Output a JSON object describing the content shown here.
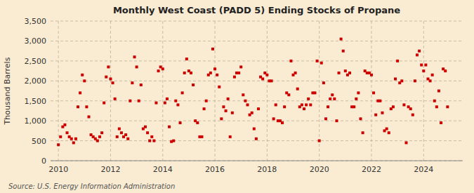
{
  "chart_data": {
    "type": "scatter",
    "title": "Monthly West Coast (PADD 5) Ending Stocks of Propane",
    "ylabel": "Thousand Barrels",
    "annotations": [
      "Source: U.S. Energy Information Administration"
    ],
    "color": "#cc0000",
    "marker": "square",
    "grid": true,
    "xlim": [
      2009.7,
      2025.5
    ],
    "xticks": [
      2010,
      2012,
      2014,
      2016,
      2018,
      2020,
      2022,
      2024
    ],
    "ylim": [
      0,
      3500
    ],
    "yticks": [
      0,
      500,
      {
        "value": 1000,
        "label": "1,000"
      },
      {
        "value": 1500,
        "label": "1,500"
      },
      {
        "value": 2000,
        "label": "2,000"
      },
      {
        "value": 2500,
        "label": "2,500"
      },
      {
        "value": 3000,
        "label": "3,000"
      },
      {
        "value": 3500,
        "label": "3,500"
      }
    ],
    "x": [
      2010.0,
      2010.083,
      2010.167,
      2010.25,
      2010.333,
      2010.417,
      2010.5,
      2010.583,
      2010.667,
      2010.75,
      2010.833,
      2010.917,
      2011.0,
      2011.083,
      2011.167,
      2011.25,
      2011.333,
      2011.417,
      2011.5,
      2011.583,
      2011.667,
      2011.75,
      2011.833,
      2011.917,
      2012.0,
      2012.083,
      2012.167,
      2012.25,
      2012.333,
      2012.417,
      2012.5,
      2012.583,
      2012.667,
      2012.75,
      2012.833,
      2012.917,
      2013.0,
      2013.083,
      2013.167,
      2013.25,
      2013.333,
      2013.417,
      2013.5,
      2013.583,
      2013.667,
      2013.75,
      2013.833,
      2013.917,
      2014.0,
      2014.083,
      2014.167,
      2014.25,
      2014.333,
      2014.417,
      2014.5,
      2014.583,
      2014.667,
      2014.75,
      2014.833,
      2014.917,
      2015.0,
      2015.083,
      2015.167,
      2015.25,
      2015.333,
      2015.417,
      2015.5,
      2015.583,
      2015.667,
      2015.75,
      2015.833,
      2015.917,
      2016.0,
      2016.083,
      2016.167,
      2016.25,
      2016.333,
      2016.417,
      2016.5,
      2016.583,
      2016.667,
      2016.75,
      2016.833,
      2016.917,
      2017.0,
      2017.083,
      2017.167,
      2017.25,
      2017.333,
      2017.417,
      2017.5,
      2017.583,
      2017.667,
      2017.75,
      2017.833,
      2017.917,
      2018.0,
      2018.083,
      2018.167,
      2018.25,
      2018.333,
      2018.417,
      2018.5,
      2018.583,
      2018.667,
      2018.75,
      2018.833,
      2018.917,
      2019.0,
      2019.083,
      2019.167,
      2019.25,
      2019.333,
      2019.417,
      2019.5,
      2019.583,
      2019.667,
      2019.75,
      2019.833,
      2019.917,
      2020.0,
      2020.083,
      2020.167,
      2020.25,
      2020.333,
      2020.417,
      2020.5,
      2020.583,
      2020.667,
      2020.75,
      2020.833,
      2020.917,
      2021.0,
      2021.083,
      2021.167,
      2021.25,
      2021.333,
      2021.417,
      2021.5,
      2021.583,
      2021.667,
      2021.75,
      2021.833,
      2021.917,
      2022.0,
      2022.083,
      2022.167,
      2022.25,
      2022.333,
      2022.417,
      2022.5,
      2022.583,
      2022.667,
      2022.75,
      2022.833,
      2022.917,
      2023.0,
      2023.083,
      2023.167,
      2023.25,
      2023.333,
      2023.417,
      2023.5,
      2023.583,
      2023.667,
      2023.75,
      2023.833,
      2023.917,
      2024.0,
      2024.083,
      2024.167,
      2024.25,
      2024.333,
      2024.417,
      2024.5,
      2024.583,
      2024.667,
      2024.75,
      2024.833,
      2024.917
    ],
    "values": [
      400,
      600,
      850,
      900,
      700,
      600,
      550,
      450,
      550,
      1350,
      1700,
      2150,
      2000,
      1350,
      1100,
      650,
      600,
      550,
      500,
      600,
      700,
      1450,
      2100,
      2350,
      2050,
      1950,
      1550,
      600,
      800,
      700,
      600,
      650,
      550,
      1500,
      1950,
      2600,
      2350,
      1500,
      1900,
      800,
      850,
      700,
      500,
      600,
      500,
      1450,
      2250,
      2350,
      2300,
      1450,
      1550,
      850,
      480,
      500,
      1500,
      1400,
      950,
      1700,
      2200,
      2550,
      2250,
      2200,
      1900,
      1000,
      950,
      600,
      600,
      1300,
      1500,
      2150,
      2200,
      2800,
      2300,
      2150,
      1850,
      1050,
      1350,
      1250,
      1550,
      600,
      1200,
      2100,
      2200,
      2200,
      2350,
      1650,
      1500,
      1400,
      1150,
      1200,
      800,
      550,
      1300,
      2100,
      2050,
      2200,
      2150,
      2000,
      2000,
      1050,
      1400,
      1000,
      1000,
      950,
      1350,
      1700,
      1650,
      2500,
      2150,
      2200,
      1800,
      1350,
      1400,
      1300,
      1400,
      1550,
      1400,
      1700,
      1700,
      2500,
      500,
      2450,
      1950,
      1050,
      1350,
      1550,
      1650,
      1550,
      1000,
      2200,
      3050,
      2750,
      2250,
      2150,
      2200,
      1350,
      1350,
      1550,
      1700,
      1050,
      700,
      2250,
      2200,
      2200,
      2150,
      1700,
      1150,
      1500,
      1500,
      1200,
      750,
      800,
      700,
      1300,
      1350,
      2050,
      2500,
      1950,
      2000,
      1400,
      450,
      1350,
      1300,
      1150,
      2000,
      2650,
      2750,
      2400,
      2250,
      2400,
      2050,
      2000,
      2150,
      1500,
      1350,
      1750,
      950,
      2300,
      2250,
      1350
    ]
  }
}
